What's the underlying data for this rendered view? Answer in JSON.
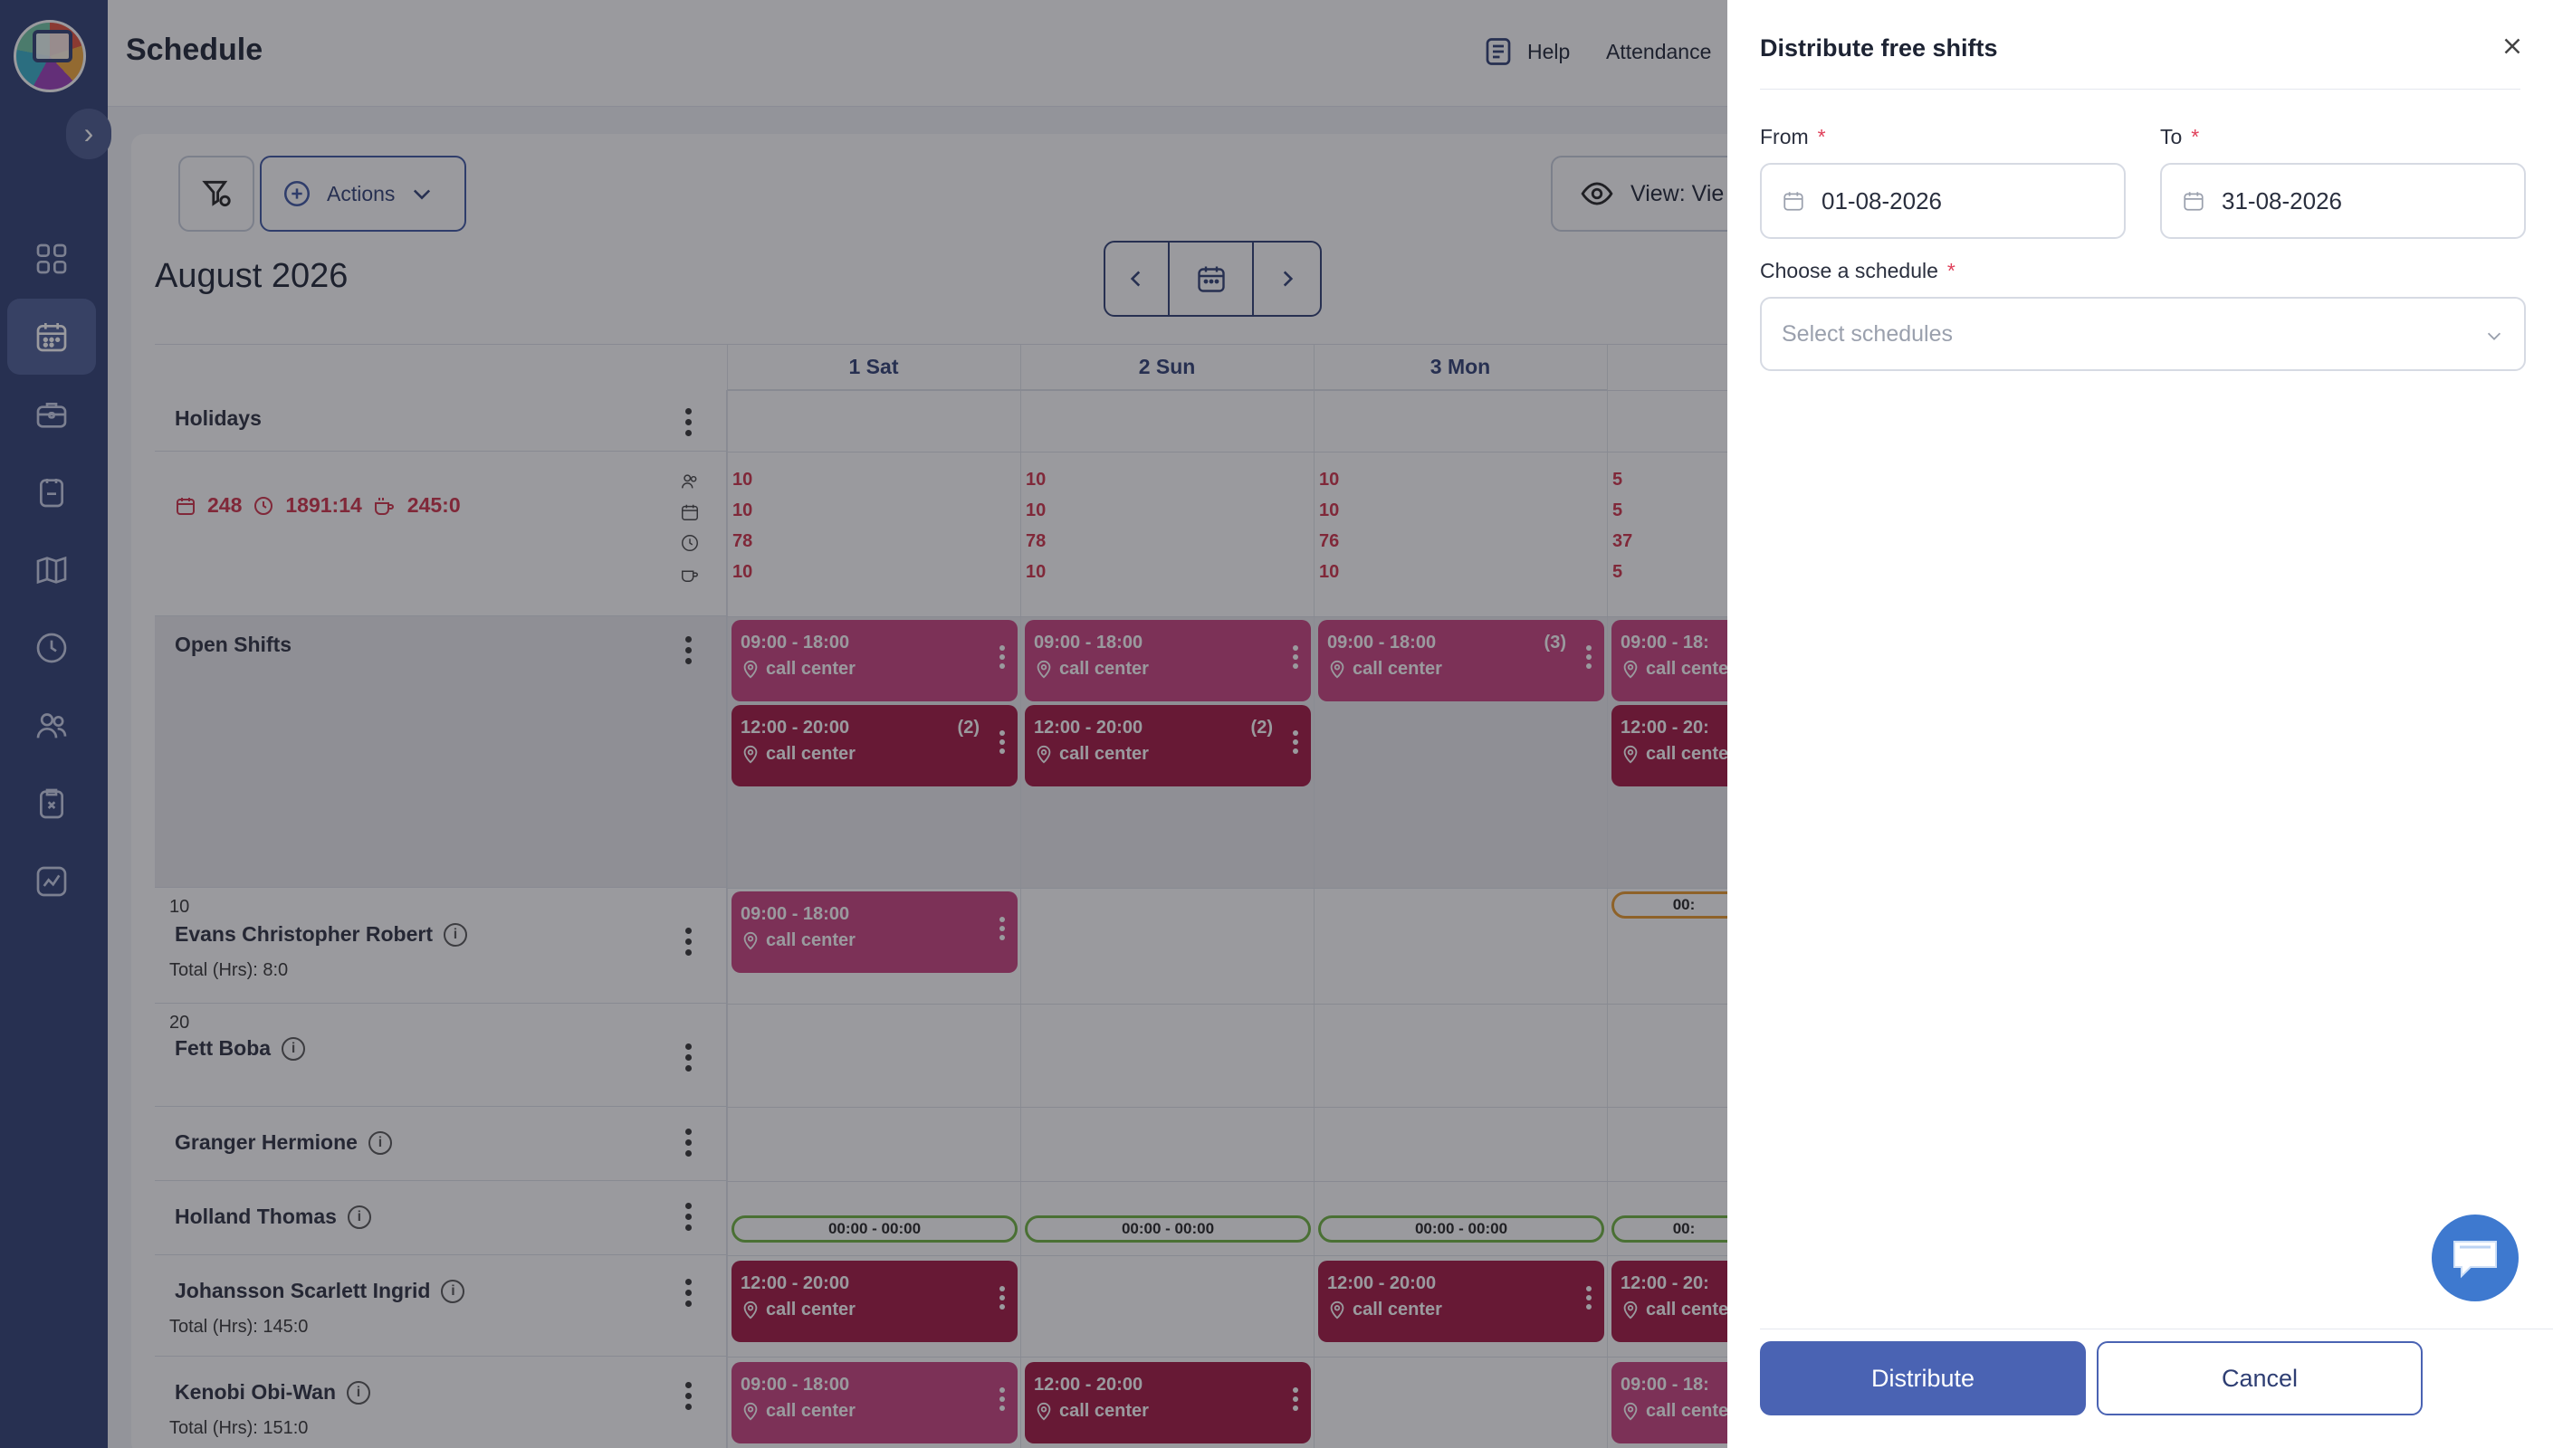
{
  "header": {
    "title": "Schedule",
    "help": "Help",
    "attendance": "Attendance"
  },
  "toolbar": {
    "actions": "Actions",
    "view": "View: Vie"
  },
  "calendar": {
    "month": "August 2026",
    "days": [
      "1 Sat",
      "2 Sun",
      "3 Mon"
    ],
    "holidays": "Holidays",
    "stats": {
      "shifts": "248",
      "hours": "1891:14",
      "breaks": "245:0"
    },
    "day_stats": [
      [
        "10",
        "10",
        "78",
        "10"
      ],
      [
        "10",
        "10",
        "78",
        "10"
      ],
      [
        "10",
        "10",
        "76",
        "10"
      ],
      [
        "5",
        "5",
        "37",
        "5"
      ]
    ],
    "open_shifts": "Open Shifts"
  },
  "shifts": {
    "morning": "09:00 - 18:00",
    "evening": "12:00 - 20:00",
    "location": "call center",
    "count_2": "(2)",
    "count_3": "(3)",
    "zero": "00:00 - 00:00",
    "m_cut": "09:00 - 18:",
    "e_cut": "12:00 - 20:",
    "loc_cut": "call cente",
    "zero_cut": "00:"
  },
  "employees": [
    {
      "id": "10",
      "name": "Evans Christopher Robert",
      "total": "Total (Hrs): 8:0"
    },
    {
      "id": "20",
      "name": "Fett Boba",
      "total": ""
    },
    {
      "id": "",
      "name": "Granger Hermione",
      "total": ""
    },
    {
      "id": "",
      "name": "Holland Thomas",
      "total": ""
    },
    {
      "id": "",
      "name": "Johansson Scarlett Ingrid",
      "total": "Total (Hrs): 145:0"
    },
    {
      "id": "",
      "name": "Kenobi Obi-Wan",
      "total": "Total (Hrs): 151:0"
    }
  ],
  "drawer": {
    "title": "Distribute free shifts",
    "from_label": "From",
    "to_label": "To",
    "required": "*",
    "from_value": "01-08-2026",
    "to_value": "31-08-2026",
    "schedule_label": "Choose a schedule",
    "schedule_placeholder": "Select schedules",
    "distribute": "Distribute",
    "cancel": "Cancel"
  },
  "icons": {
    "sidebar": [
      "dashboard-icon",
      "calendar-icon",
      "briefcase-icon",
      "clipboard-icon",
      "map-icon",
      "clock-icon",
      "users-icon",
      "clipboard-x-icon",
      "chart-icon"
    ]
  },
  "colors": {
    "sidebar": "#2e3e73",
    "accent": "#4a63b3",
    "shift_morning": "#c9407e",
    "shift_evening": "#a31541",
    "alert": "#d03048"
  }
}
